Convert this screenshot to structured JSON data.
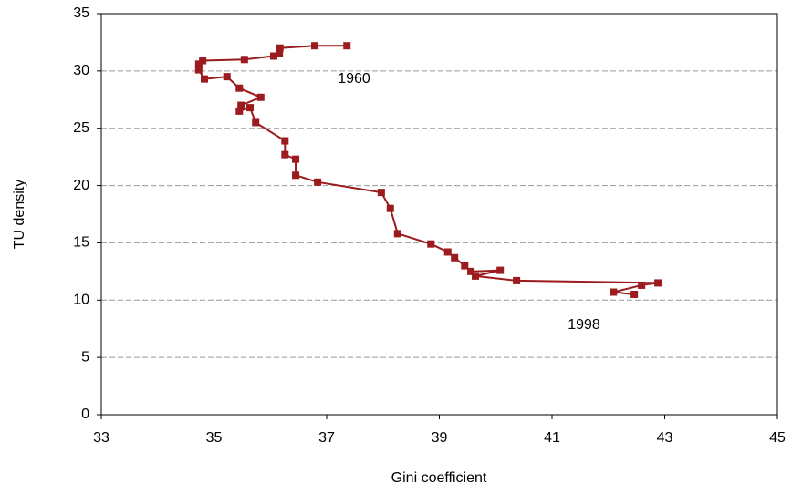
{
  "chart_data": {
    "type": "line",
    "x_label": "Gini coefficient",
    "y_label": "TU density",
    "annotations": [
      "1960",
      "1998"
    ],
    "x": [
      37.36,
      36.79,
      36.17,
      36.16,
      36.06,
      35.54,
      34.8,
      34.73,
      34.73,
      34.83,
      35.23,
      35.45,
      35.83,
      35.48,
      35.45,
      35.64,
      35.74,
      36.26,
      36.26,
      36.45,
      36.45,
      36.84,
      37.97,
      38.13,
      38.26,
      38.85,
      39.15,
      39.27,
      39.45,
      39.56,
      40.08,
      39.64,
      40.37,
      42.88,
      42.59,
      42.09,
      42.46
    ],
    "values": [
      32.2,
      32.2,
      32.0,
      31.5,
      31.3,
      31.0,
      30.9,
      30.6,
      30.1,
      29.3,
      29.5,
      28.5,
      27.7,
      27.0,
      26.5,
      26.8,
      25.5,
      23.9,
      22.7,
      22.3,
      20.9,
      20.3,
      19.4,
      18.0,
      15.8,
      14.9,
      14.2,
      13.7,
      13.0,
      12.5,
      12.6,
      12.1,
      11.7,
      11.5,
      11.3,
      10.7,
      10.5
    ],
    "color": "#9b1b1e",
    "xlim": [
      33,
      45
    ],
    "xticks": [
      33,
      35,
      37,
      39,
      41,
      43,
      45
    ],
    "ylim": [
      0,
      35
    ],
    "yticks": [
      0,
      5,
      10,
      15,
      20,
      25,
      30,
      35
    ],
    "grid": true
  }
}
